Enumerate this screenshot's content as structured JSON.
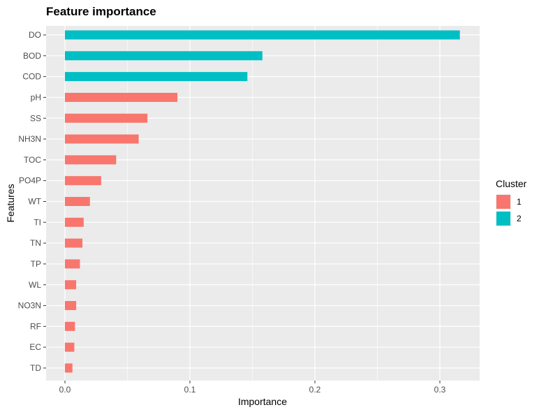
{
  "chart_data": {
    "type": "bar",
    "orientation": "horizontal",
    "title": "Feature importance",
    "xlabel": "Importance",
    "ylabel": "Features",
    "xlim": [
      0,
      0.33
    ],
    "xticks": [
      0.0,
      0.1,
      0.2,
      0.3
    ],
    "xtick_labels": [
      "0.0",
      "0.1",
      "0.2",
      "0.3"
    ],
    "grid": true,
    "legend": {
      "title": "Cluster",
      "placement": "right",
      "entries": [
        {
          "label": "1",
          "color": "#F8766D"
        },
        {
          "label": "2",
          "color": "#00BFC4"
        }
      ]
    },
    "categories": [
      "DO",
      "BOD",
      "COD",
      "pH",
      "SS",
      "NH3N",
      "TOC",
      "PO4P",
      "WT",
      "TI",
      "TN",
      "TP",
      "WL",
      "NO3N",
      "RF",
      "EC",
      "TD"
    ],
    "values": [
      0.316,
      0.158,
      0.146,
      0.09,
      0.066,
      0.059,
      0.041,
      0.029,
      0.02,
      0.015,
      0.014,
      0.012,
      0.009,
      0.009,
      0.008,
      0.0075,
      0.006
    ],
    "cluster": [
      "2",
      "2",
      "2",
      "1",
      "1",
      "1",
      "1",
      "1",
      "1",
      "1",
      "1",
      "1",
      "1",
      "1",
      "1",
      "1",
      "1"
    ]
  }
}
